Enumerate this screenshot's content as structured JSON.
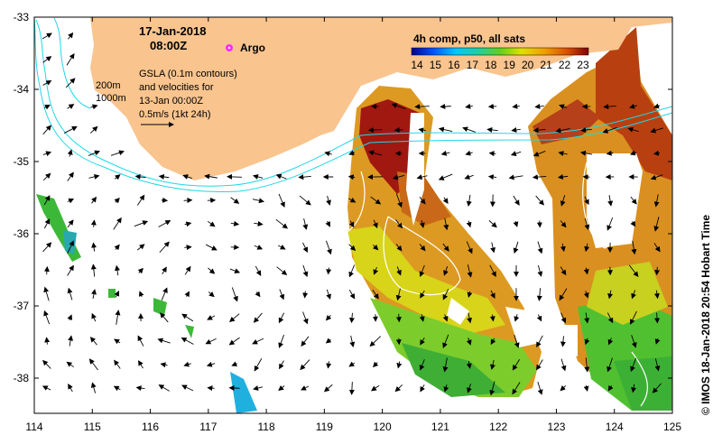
{
  "map": {
    "date": "17-Jan-2018",
    "time": "08:00Z",
    "argo_label": "Argo",
    "gsla_lines": [
      "GSLA (0.1m contours)",
      "and velocities for",
      "13-Jan 00:00Z",
      "0.5m/s (1kt 24h)"
    ],
    "isobaths": [
      "200m",
      "1000m"
    ],
    "colorbar_title": "4h comp, p50, all sats",
    "colorbar_ticks": [
      "14",
      "15",
      "16",
      "17",
      "18",
      "19",
      "20",
      "21",
      "22",
      "23"
    ],
    "credit": "© IMOS 18-Jan-2018 20:54 Hobart Time",
    "x_ticks": [
      "114",
      "115",
      "116",
      "117",
      "118",
      "119",
      "120",
      "121",
      "122",
      "123",
      "124",
      "125"
    ],
    "y_ticks": [
      "-33",
      "-34",
      "-35",
      "-36",
      "-37",
      "-38"
    ],
    "colors": {
      "land": "#f9c48e",
      "isobath": "#20d8e8",
      "argo": "#ff2aff",
      "sst_warm": "#9a0e0e",
      "sst_mid": "#d9901a",
      "sst_cool": "#2cae2c"
    }
  }
}
